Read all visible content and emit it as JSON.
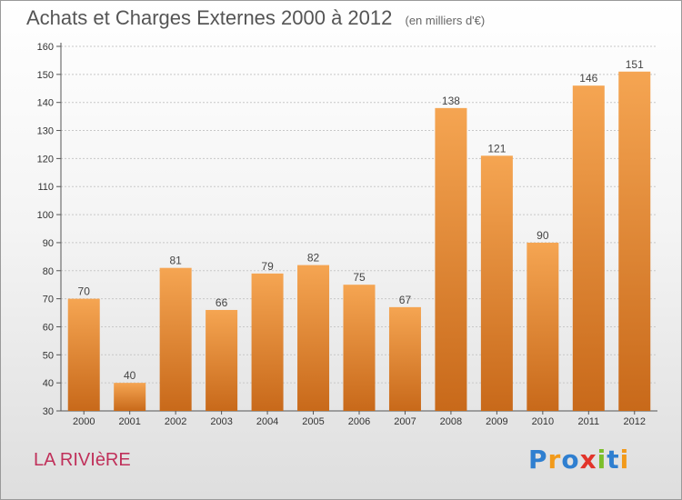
{
  "header": {
    "title": "Achats et Charges Externes 2000 à 2012",
    "unit": "(en milliers d'€)"
  },
  "footer": {
    "commune": "LA RIVIèRE",
    "brand_letters": [
      "P",
      "r",
      "o",
      "x",
      "i",
      "t",
      "i"
    ],
    "brand_colors": [
      "#2f7fd0",
      "#f29a1a",
      "#2f7fd0",
      "#e2342a",
      "#7cbf2a",
      "#2f7fd0",
      "#f29a1a"
    ]
  },
  "colors": {
    "bar_top": "#f5a552",
    "bar_bottom": "#c8691a",
    "grid": "#c8c8c8"
  },
  "chart_data": {
    "type": "bar",
    "title": "Achats et Charges Externes 2000 à 2012",
    "subtitle": "(en milliers d'€)",
    "categories": [
      "2000",
      "2001",
      "2002",
      "2003",
      "2004",
      "2005",
      "2006",
      "2007",
      "2008",
      "2009",
      "2010",
      "2011",
      "2012"
    ],
    "values": [
      70,
      40,
      81,
      66,
      79,
      82,
      75,
      67,
      138,
      121,
      90,
      146,
      151
    ],
    "ylim": [
      30,
      160
    ],
    "yticks": [
      30,
      40,
      50,
      60,
      70,
      80,
      90,
      100,
      110,
      120,
      130,
      140,
      150,
      160
    ],
    "grid": true,
    "data_labels": true
  }
}
